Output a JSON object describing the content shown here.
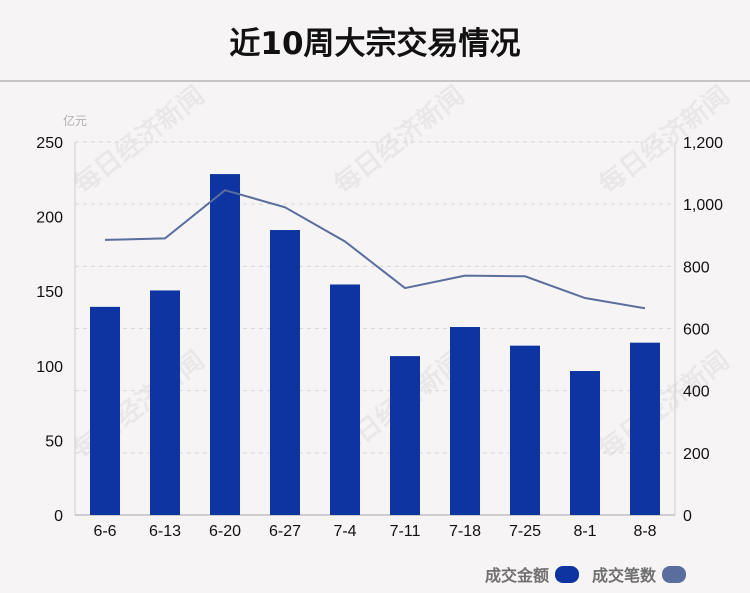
{
  "title": "近10周大宗交易情况",
  "watermark_text": "每日经济新闻",
  "colors": {
    "bar": "#0d34a0",
    "line": "#5a6e9e",
    "grid": "#d9d6d8",
    "axis_text": "#111111",
    "unit_text": "#b0b0b0"
  },
  "chart_data": {
    "type": "bar+line",
    "categories": [
      "6-6",
      "6-13",
      "6-20",
      "6-27",
      "7-4",
      "7-11",
      "7-18",
      "7-25",
      "8-1",
      "8-8"
    ],
    "series": [
      {
        "name": "成交金额",
        "type": "bar",
        "axis": "left",
        "values": [
          139.5,
          150.5,
          228.5,
          191,
          154.5,
          106.5,
          126,
          113.5,
          96.5,
          115.5
        ]
      },
      {
        "name": "成交笔数",
        "type": "line",
        "axis": "right",
        "values": [
          885,
          890,
          1045,
          990,
          880,
          730,
          770,
          768,
          698,
          665
        ]
      }
    ],
    "y_left": {
      "unit": "亿元",
      "ylim": [
        0,
        250
      ],
      "ticks": [
        "0",
        "50",
        "100",
        "150",
        "200",
        "250"
      ]
    },
    "y_right": {
      "ylim": [
        0,
        1200
      ],
      "ticks": [
        "0",
        "200",
        "400",
        "600",
        "800",
        "1,000",
        "1,200"
      ]
    },
    "grid": true,
    "legend_position": "bottom-right"
  },
  "legend": {
    "amount_label": "成交金额",
    "count_label": "成交笔数"
  }
}
